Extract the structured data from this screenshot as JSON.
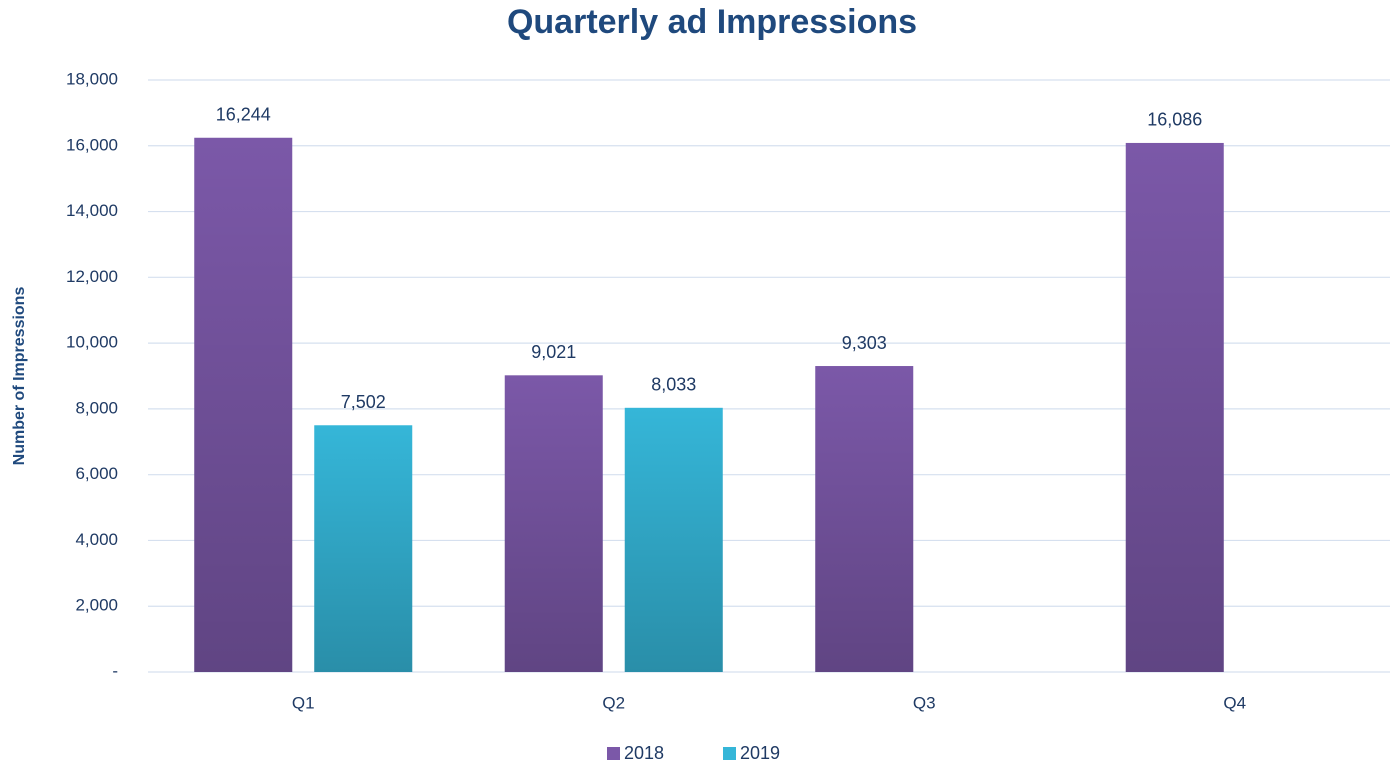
{
  "chart_data": {
    "type": "bar",
    "title": "Quarterly ad Impressions",
    "y_label": "Number of Impressions",
    "categories": [
      "Q1",
      "Q2",
      "Q3",
      "Q4"
    ],
    "series": [
      {
        "name": "2018",
        "color": "#7b58a8",
        "values": [
          16244,
          9021,
          9303,
          16086
        ],
        "value_labels": [
          "16,244",
          "9,021",
          "9,303",
          "16,086"
        ]
      },
      {
        "name": "2019",
        "color": "#35b6d8",
        "values": [
          7502,
          8033,
          null,
          null
        ],
        "value_labels": [
          "7,502",
          "8,033",
          null,
          null
        ]
      }
    ],
    "ylim": [
      0,
      18000
    ],
    "yticks": [
      {
        "value": 0,
        "label": "-"
      },
      {
        "value": 2000,
        "label": "2,000"
      },
      {
        "value": 4000,
        "label": "4,000"
      },
      {
        "value": 6000,
        "label": "6,000"
      },
      {
        "value": 8000,
        "label": "8,000"
      },
      {
        "value": 10000,
        "label": "10,000"
      },
      {
        "value": 12000,
        "label": "12,000"
      },
      {
        "value": 14000,
        "label": "14,000"
      },
      {
        "value": 16000,
        "label": "16,000"
      },
      {
        "value": 18000,
        "label": "18,000"
      }
    ],
    "grid": true,
    "legend": "bottom"
  }
}
